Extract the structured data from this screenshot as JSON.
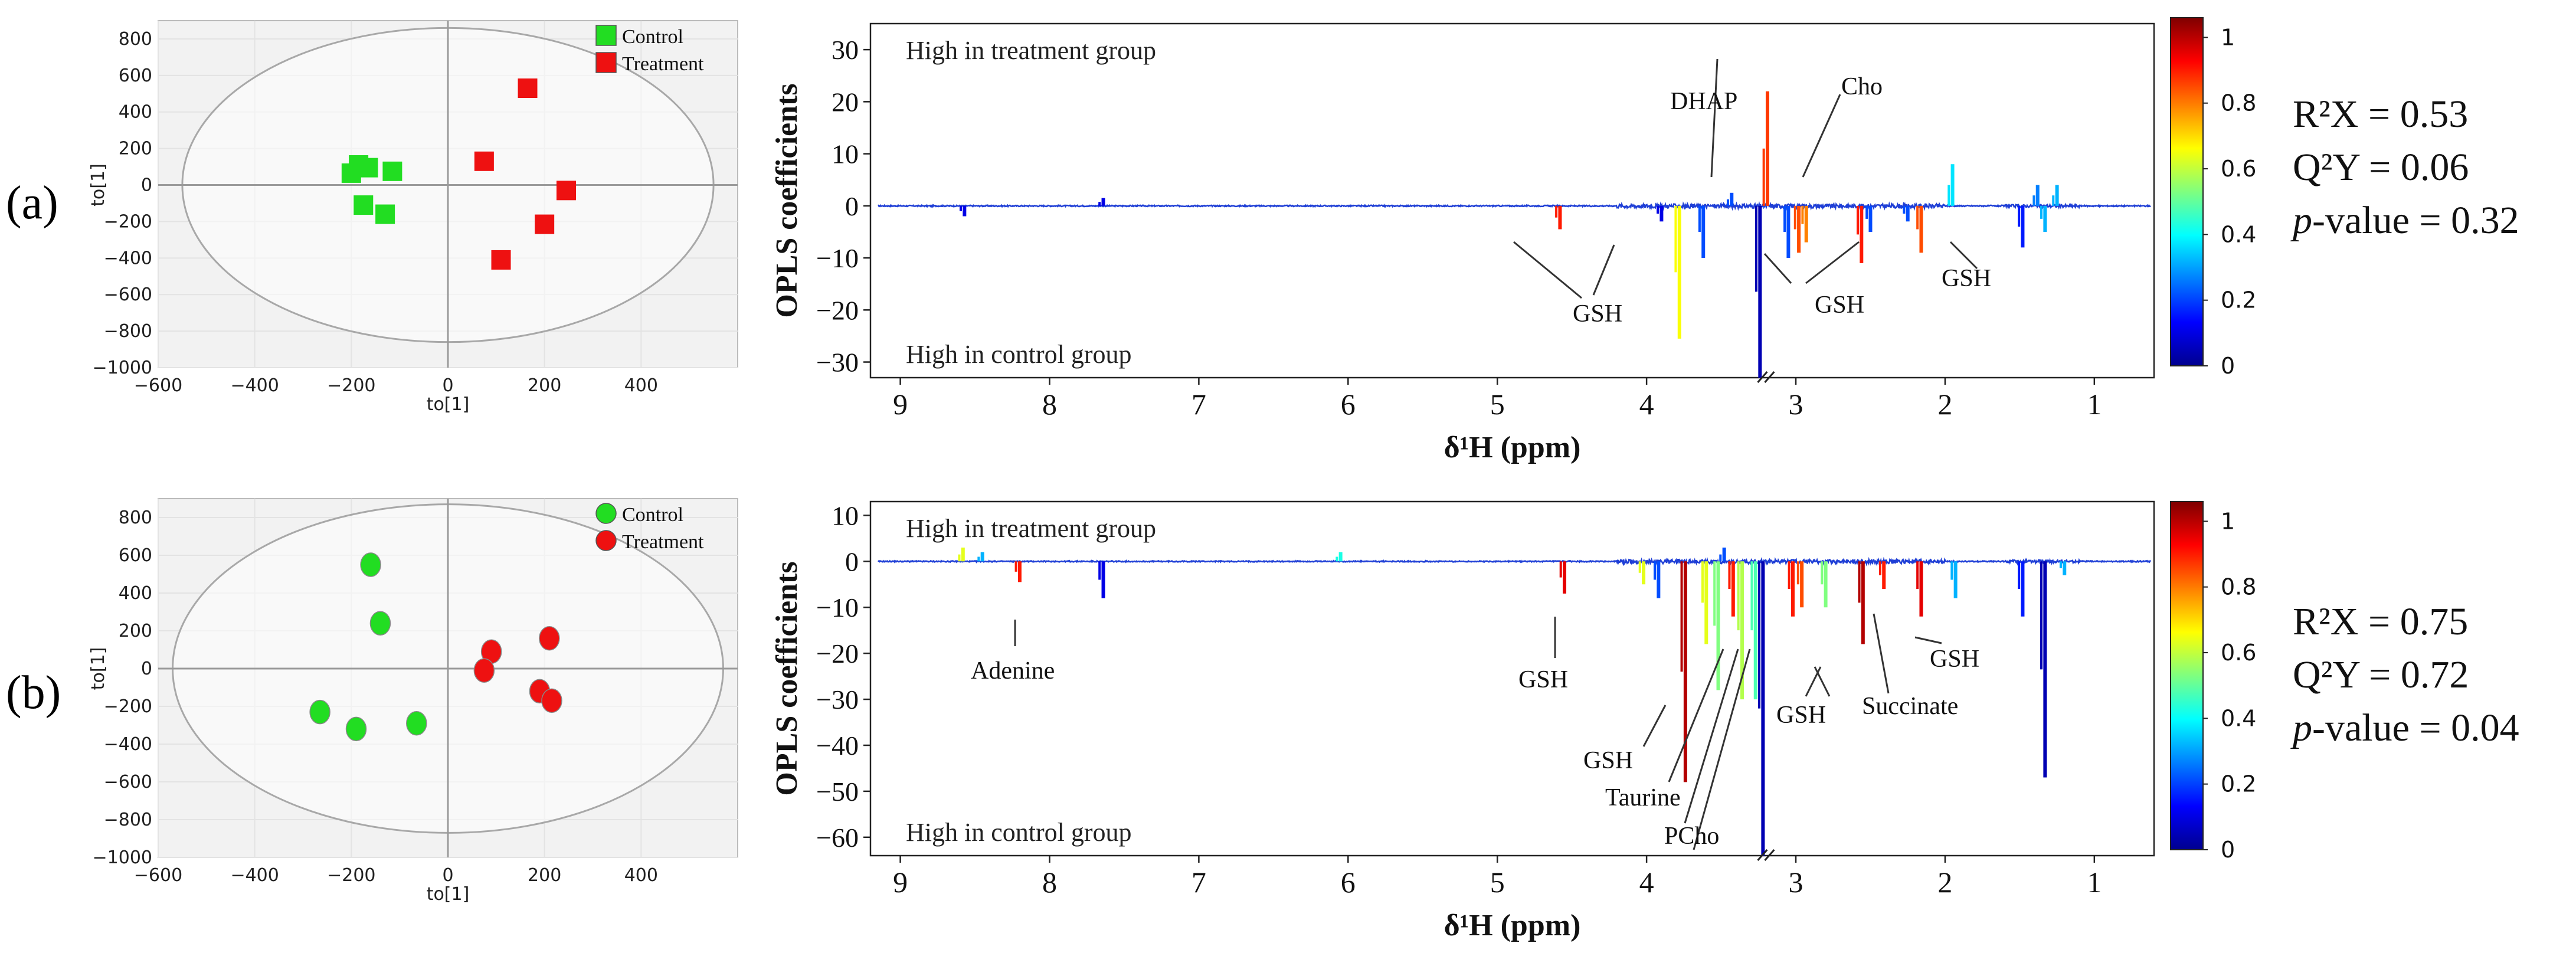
{
  "colors": {
    "control_green": "#22dd22",
    "treatment_red": "#ee1111",
    "spectrum_blue": "#1f3fd6",
    "plot_bg": "#f2f2f2",
    "grid_line": "#e3e3e3"
  },
  "chart_data": [
    {
      "type": "scatter",
      "panel": "a",
      "panel_label": "(a)",
      "xlabel": "to[1]",
      "ylabel": "to[1]",
      "xlim": [
        -600,
        600
      ],
      "ylim": [
        -1000,
        900
      ],
      "xticks": [
        "−600",
        "−400",
        "−200",
        "0",
        "200",
        "400"
      ],
      "yticks": [
        "800",
        "600",
        "400",
        "200",
        "0",
        "−200",
        "−400",
        "−600",
        "−800",
        "−1000"
      ],
      "ellipse": {
        "cx": 0,
        "cy": 0,
        "rx": 550,
        "ry": 860
      },
      "marker": "square",
      "legend": [
        "Control",
        "Treatment"
      ],
      "series": [
        {
          "name": "Control",
          "points": [
            [
              -185,
              110
            ],
            [
              -165,
              95
            ],
            [
              -200,
              65
            ],
            [
              -115,
              75
            ],
            [
              -175,
              -110
            ],
            [
              -130,
              -160
            ]
          ]
        },
        {
          "name": "Treatment",
          "points": [
            [
              165,
              530
            ],
            [
              75,
              130
            ],
            [
              245,
              -30
            ],
            [
              200,
              -215
            ],
            [
              110,
              -410
            ]
          ]
        }
      ]
    },
    {
      "type": "line",
      "panel": "a",
      "title": "",
      "xlabel": "δ¹H (ppm)",
      "ylabel": "OPLS coefficients",
      "xlim": [
        9.2,
        0.6
      ],
      "ylim": [
        -33,
        35
      ],
      "xticks": [
        "9",
        "8",
        "7",
        "6",
        "5",
        "4",
        "3",
        "2",
        "1"
      ],
      "yticks": [
        "30",
        "20",
        "10",
        "0",
        "−10",
        "−20",
        "−30"
      ],
      "top_note": "High in treatment group",
      "bottom_note": "High in control group",
      "peaks": [
        {
          "ppm": 4.58,
          "v": -4.5,
          "c": 0.85
        },
        {
          "ppm": 3.78,
          "v": -25.5,
          "c": 0.62
        },
        {
          "ppm": 3.24,
          "v": -33,
          "c": 0.05
        },
        {
          "ppm": 3.19,
          "v": 22,
          "c": 0.82
        },
        {
          "ppm": 3.43,
          "v": 2.5,
          "c": 0.2
        },
        {
          "ppm": 2.98,
          "v": -9,
          "c": 0.8
        },
        {
          "ppm": 2.93,
          "v": -7,
          "c": 0.75
        },
        {
          "ppm": 2.56,
          "v": -11,
          "c": 0.85
        },
        {
          "ppm": 2.16,
          "v": -9,
          "c": 0.8
        },
        {
          "ppm": 1.95,
          "v": 8,
          "c": 0.35
        },
        {
          "ppm": 3.9,
          "v": -3,
          "c": 0.1
        },
        {
          "ppm": 3.62,
          "v": -10,
          "c": 0.2
        },
        {
          "ppm": 3.05,
          "v": -10,
          "c": 0.2
        },
        {
          "ppm": 2.5,
          "v": -5,
          "c": 0.2
        },
        {
          "ppm": 2.25,
          "v": -3,
          "c": 0.2
        },
        {
          "ppm": 1.48,
          "v": -8,
          "c": 0.15
        },
        {
          "ppm": 1.33,
          "v": -5,
          "c": 0.3
        },
        {
          "ppm": 1.25,
          "v": 4,
          "c": 0.3
        },
        {
          "ppm": 1.38,
          "v": 4,
          "c": 0.25
        },
        {
          "ppm": 8.57,
          "v": -2,
          "c": 0.1
        },
        {
          "ppm": 7.64,
          "v": 1.5,
          "c": 0.1
        }
      ],
      "annotations": [
        "DHAP",
        "Cho",
        "GSH",
        "GSH",
        "GSH"
      ],
      "colorbar": {
        "min": 0,
        "max": 1,
        "ticks": [
          "1",
          "0.8",
          "0.6",
          "0.4",
          "0.2",
          "0"
        ]
      },
      "stats": {
        "r2x": "R²X = 0.53",
        "q2y": "Q²Y = 0.06",
        "p_label": "p",
        "p_rest": "-value = 0.32"
      }
    },
    {
      "type": "scatter",
      "panel": "b",
      "panel_label": "(b)",
      "xlabel": "to[1]",
      "ylabel": "to[1]",
      "xlim": [
        -600,
        600
      ],
      "ylim": [
        -1000,
        900
      ],
      "xticks": [
        "−600",
        "−400",
        "−200",
        "0",
        "200",
        "400"
      ],
      "yticks": [
        "800",
        "600",
        "400",
        "200",
        "0",
        "−200",
        "−400",
        "−600",
        "−800",
        "−1000"
      ],
      "ellipse": {
        "cx": 0,
        "cy": 0,
        "rx": 570,
        "ry": 870
      },
      "marker": "circle",
      "legend": [
        "Control",
        "Treatment"
      ],
      "series": [
        {
          "name": "Control",
          "points": [
            [
              -160,
              550
            ],
            [
              -140,
              240
            ],
            [
              -265,
              -230
            ],
            [
              -190,
              -320
            ],
            [
              -65,
              -290
            ]
          ]
        },
        {
          "name": "Treatment",
          "points": [
            [
              210,
              160
            ],
            [
              90,
              90
            ],
            [
              75,
              -10
            ],
            [
              190,
              -120
            ],
            [
              215,
              -170
            ]
          ]
        }
      ]
    },
    {
      "type": "line",
      "panel": "b",
      "title": "",
      "xlabel": "δ¹H (ppm)",
      "ylabel": "OPLS coefficients",
      "xlim": [
        9.2,
        0.6
      ],
      "ylim": [
        -64,
        13
      ],
      "xticks": [
        "9",
        "8",
        "7",
        "6",
        "5",
        "4",
        "3",
        "2",
        "1"
      ],
      "yticks": [
        "10",
        "0",
        "−10",
        "−20",
        "−30",
        "−40",
        "−50",
        "−60"
      ],
      "top_note": "High in treatment group",
      "bottom_note": "High in control group",
      "peaks": [
        {
          "ppm": 8.2,
          "v": -4.5,
          "c": 0.85
        },
        {
          "ppm": 7.64,
          "v": -8,
          "c": 0.1
        },
        {
          "ppm": 4.55,
          "v": -7,
          "c": 0.9
        },
        {
          "ppm": 3.74,
          "v": -48,
          "c": 0.95
        },
        {
          "ppm": 3.6,
          "v": -18,
          "c": 0.6
        },
        {
          "ppm": 3.52,
          "v": -28,
          "c": 0.5
        },
        {
          "ppm": 3.42,
          "v": -12,
          "c": 0.85
        },
        {
          "ppm": 3.36,
          "v": -30,
          "c": 0.55
        },
        {
          "ppm": 3.27,
          "v": -30,
          "c": 0.45
        },
        {
          "ppm": 3.22,
          "v": -64,
          "c": 0.05
        },
        {
          "ppm": 3.02,
          "v": -12,
          "c": 0.85
        },
        {
          "ppm": 2.96,
          "v": -10,
          "c": 0.8
        },
        {
          "ppm": 2.8,
          "v": -10,
          "c": 0.5
        },
        {
          "ppm": 2.55,
          "v": -18,
          "c": 0.95
        },
        {
          "ppm": 2.41,
          "v": -6,
          "c": 0.85
        },
        {
          "ppm": 2.16,
          "v": -12,
          "c": 0.9
        },
        {
          "ppm": 1.93,
          "v": -8,
          "c": 0.3
        },
        {
          "ppm": 1.48,
          "v": -12,
          "c": 0.15
        },
        {
          "ppm": 1.33,
          "v": -47,
          "c": 0.05
        },
        {
          "ppm": 1.2,
          "v": -3,
          "c": 0.3
        },
        {
          "ppm": 3.92,
          "v": -8,
          "c": 0.2
        },
        {
          "ppm": 4.02,
          "v": -5,
          "c": 0.6
        },
        {
          "ppm": 8.58,
          "v": 3,
          "c": 0.6
        },
        {
          "ppm": 8.45,
          "v": 2,
          "c": 0.3
        },
        {
          "ppm": 6.05,
          "v": 2,
          "c": 0.4
        },
        {
          "ppm": 3.48,
          "v": 3,
          "c": 0.2
        }
      ],
      "annotations": [
        "Adenine",
        "GSH",
        "GSH",
        "Taurine",
        "PCho",
        "GSH",
        "Succinate",
        "GSH"
      ],
      "colorbar": {
        "min": 0,
        "max": 1,
        "ticks": [
          "1",
          "0.8",
          "0.6",
          "0.4",
          "0.2",
          "0"
        ]
      },
      "stats": {
        "r2x": "R²X = 0.75",
        "q2y": "Q²Y = 0.72",
        "p_label": "p",
        "p_rest": "-value = 0.04"
      }
    }
  ]
}
